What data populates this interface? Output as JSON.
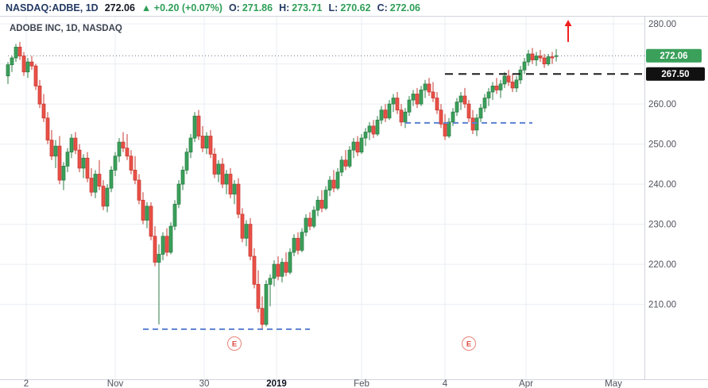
{
  "header": {
    "symbol": "NASDAQ:ADBE, 1D",
    "price": "272.06",
    "direction": "▲",
    "change": "+0.20 (+0.07%)",
    "ohlc": [
      {
        "label": "O:",
        "value": "271.86"
      },
      {
        "label": "H:",
        "value": "273.71"
      },
      {
        "label": "L:",
        "value": "270.62"
      },
      {
        "label": "C:",
        "value": "272.06"
      }
    ]
  },
  "legend": "ADOBE INC, 1D, NASDAQ",
  "colors": {
    "up": "#3aa05a",
    "up_border": "#2d7d46",
    "down": "#ea5047",
    "down_border": "#c63a32",
    "grid": "#eaedf3",
    "axis_border": "#d1d4dc",
    "axis_text": "#50535e",
    "support": "#5b80d0",
    "resistance": "#1d1d1d",
    "arrow": "#f01f1f",
    "earnings": "#e0483e",
    "last_price_badge_bg": "#3aa05a",
    "level_badge_bg": "#111111",
    "dotted_price_line": "#6b7280",
    "year_label": "#131722"
  },
  "price_axis": {
    "ticks": [
      280,
      260,
      250,
      240,
      230,
      220,
      210
    ],
    "last_price_label": "272.06",
    "level_label": "267.50"
  },
  "time_axis": {
    "ticks": [
      {
        "label": "2",
        "i": 4.6
      },
      {
        "label": "Nov",
        "i": 27
      },
      {
        "label": "30",
        "i": 49.4
      },
      {
        "label": "2019",
        "i": 67.6,
        "bold": true
      },
      {
        "label": "Feb",
        "i": 89
      },
      {
        "label": "4",
        "i": 110
      },
      {
        "label": "Apr",
        "i": 130.4
      },
      {
        "label": "May",
        "i": 152.4
      }
    ]
  },
  "chart_data": {
    "type": "candlestick",
    "title": "ADOBE INC, 1D, NASDAQ",
    "ohlc_format": "[open, high, low, close]",
    "price_range_visible": [
      191.5,
      282
    ],
    "gridline_prices": [
      210,
      220,
      230,
      240,
      250,
      260,
      270,
      280
    ],
    "last_close": 272.06,
    "candles": [
      [
        267.0,
        270.5,
        265.0,
        269.8
      ],
      [
        269.8,
        272.0,
        268.0,
        271.5
      ],
      [
        271.5,
        275.0,
        270.5,
        274.2
      ],
      [
        274.2,
        275.5,
        271.0,
        272.0
      ],
      [
        272.0,
        273.0,
        267.0,
        268.0
      ],
      [
        268.0,
        271.5,
        266.5,
        270.5
      ],
      [
        270.5,
        272.0,
        268.5,
        269.5
      ],
      [
        269.5,
        270.0,
        263.5,
        264.5
      ],
      [
        264.5,
        266.0,
        259.0,
        260.0
      ],
      [
        260.0,
        262.5,
        255.5,
        256.5
      ],
      [
        256.5,
        258.0,
        250.0,
        251.0
      ],
      [
        251.0,
        253.5,
        246.0,
        247.0
      ],
      [
        247.0,
        251.0,
        244.0,
        249.5
      ],
      [
        249.5,
        252.0,
        240.0,
        241.0
      ],
      [
        241.0,
        245.5,
        238.5,
        244.5
      ],
      [
        244.5,
        249.0,
        243.0,
        248.0
      ],
      [
        248.0,
        252.5,
        246.5,
        251.5
      ],
      [
        251.5,
        253.0,
        247.5,
        248.5
      ],
      [
        248.5,
        250.0,
        243.0,
        244.0
      ],
      [
        244.0,
        247.5,
        241.5,
        246.5
      ],
      [
        246.5,
        248.0,
        240.5,
        241.5
      ],
      [
        241.5,
        244.0,
        237.0,
        238.0
      ],
      [
        238.0,
        243.5,
        236.5,
        242.5
      ],
      [
        242.5,
        246.0,
        238.5,
        239.5
      ],
      [
        239.5,
        241.0,
        233.5,
        234.5
      ],
      [
        234.5,
        240.0,
        233.0,
        239.0
      ],
      [
        239.0,
        244.5,
        238.0,
        243.5
      ],
      [
        243.5,
        248.0,
        242.0,
        247.0
      ],
      [
        247.0,
        251.5,
        245.5,
        250.5
      ],
      [
        250.5,
        253.0,
        248.0,
        249.0
      ],
      [
        249.0,
        252.5,
        246.0,
        247.0
      ],
      [
        247.0,
        248.5,
        242.5,
        243.5
      ],
      [
        243.5,
        247.0,
        240.0,
        241.0
      ],
      [
        241.0,
        242.5,
        235.0,
        236.0
      ],
      [
        236.0,
        238.0,
        230.0,
        231.0
      ],
      [
        231.0,
        235.5,
        229.0,
        234.5
      ],
      [
        234.5,
        235.5,
        226.0,
        227.0
      ],
      [
        227.0,
        229.5,
        219.5,
        220.5
      ],
      [
        220.5,
        225.0,
        205.0,
        222.5
      ],
      [
        222.5,
        228.0,
        221.0,
        227.0
      ],
      [
        227.0,
        229.0,
        222.0,
        223.0
      ],
      [
        223.0,
        230.5,
        222.5,
        229.5
      ],
      [
        229.5,
        236.0,
        228.5,
        235.0
      ],
      [
        235.0,
        241.0,
        234.0,
        240.0
      ],
      [
        240.0,
        244.5,
        238.5,
        243.5
      ],
      [
        243.5,
        249.0,
        242.5,
        248.0
      ],
      [
        248.0,
        252.5,
        246.5,
        251.5
      ],
      [
        251.5,
        258.0,
        250.5,
        257.0
      ],
      [
        257.0,
        258.5,
        251.0,
        252.0
      ],
      [
        252.0,
        254.5,
        248.0,
        249.0
      ],
      [
        249.0,
        253.0,
        247.5,
        252.0
      ],
      [
        252.0,
        253.5,
        246.5,
        247.5
      ],
      [
        247.5,
        249.0,
        241.5,
        242.5
      ],
      [
        242.5,
        246.0,
        240.5,
        245.0
      ],
      [
        245.0,
        246.5,
        239.0,
        240.0
      ],
      [
        240.0,
        243.5,
        237.5,
        242.5
      ],
      [
        242.5,
        244.0,
        236.5,
        237.5
      ],
      [
        237.5,
        241.0,
        235.0,
        240.0
      ],
      [
        240.0,
        241.5,
        231.5,
        232.5
      ],
      [
        232.5,
        234.0,
        225.5,
        226.5
      ],
      [
        226.5,
        231.0,
        224.5,
        230.0
      ],
      [
        230.0,
        231.5,
        221.0,
        222.0
      ],
      [
        222.0,
        224.0,
        214.0,
        215.0
      ],
      [
        215.0,
        218.5,
        208.0,
        209.0
      ],
      [
        209.0,
        212.0,
        203.9,
        205.0
      ],
      [
        205.0,
        216.0,
        204.5,
        215.0
      ],
      [
        215.0,
        217.5,
        209.5,
        216.5
      ],
      [
        216.5,
        221.0,
        214.5,
        220.0
      ],
      [
        220.0,
        222.0,
        216.0,
        217.0
      ],
      [
        217.0,
        221.5,
        215.5,
        220.5
      ],
      [
        220.5,
        223.0,
        217.0,
        218.0
      ],
      [
        218.0,
        224.0,
        217.5,
        223.0
      ],
      [
        223.0,
        227.5,
        222.0,
        226.5
      ],
      [
        226.5,
        228.0,
        222.5,
        223.5
      ],
      [
        223.5,
        229.0,
        223.0,
        228.0
      ],
      [
        228.0,
        232.5,
        227.0,
        231.5
      ],
      [
        231.5,
        233.0,
        228.5,
        229.5
      ],
      [
        229.5,
        234.5,
        229.0,
        233.5
      ],
      [
        233.5,
        237.0,
        232.0,
        236.0
      ],
      [
        236.0,
        238.5,
        233.0,
        234.0
      ],
      [
        234.0,
        239.5,
        233.5,
        238.5
      ],
      [
        238.5,
        242.0,
        237.0,
        241.0
      ],
      [
        241.0,
        243.5,
        238.0,
        239.0
      ],
      [
        239.0,
        244.0,
        238.5,
        243.0
      ],
      [
        243.0,
        247.0,
        242.0,
        246.0
      ],
      [
        246.0,
        248.5,
        243.5,
        244.5
      ],
      [
        244.5,
        249.5,
        244.0,
        248.5
      ],
      [
        248.5,
        251.5,
        246.5,
        250.5
      ],
      [
        250.5,
        252.0,
        247.0,
        248.0
      ],
      [
        248.0,
        252.5,
        247.5,
        251.5
      ],
      [
        251.5,
        254.0,
        249.5,
        253.0
      ],
      [
        253.0,
        255.5,
        251.0,
        254.5
      ],
      [
        254.5,
        256.0,
        251.5,
        252.5
      ],
      [
        252.5,
        257.0,
        252.0,
        256.0
      ],
      [
        256.0,
        259.5,
        255.0,
        258.5
      ],
      [
        258.5,
        260.0,
        255.5,
        256.5
      ],
      [
        256.5,
        261.0,
        256.0,
        260.0
      ],
      [
        260.0,
        262.5,
        258.0,
        261.5
      ],
      [
        261.5,
        263.0,
        257.5,
        258.5
      ],
      [
        258.5,
        260.0,
        254.5,
        255.5
      ],
      [
        255.5,
        259.0,
        254.0,
        258.0
      ],
      [
        258.0,
        262.0,
        257.0,
        261.0
      ],
      [
        261.0,
        263.5,
        259.5,
        262.5
      ],
      [
        262.5,
        264.0,
        259.0,
        260.0
      ],
      [
        260.0,
        264.5,
        259.5,
        263.5
      ],
      [
        263.5,
        266.0,
        261.5,
        265.0
      ],
      [
        265.0,
        266.5,
        262.0,
        263.0
      ],
      [
        263.0,
        265.5,
        260.5,
        261.5
      ],
      [
        261.5,
        263.0,
        257.5,
        258.5
      ],
      [
        258.5,
        260.0,
        254.0,
        255.0
      ],
      [
        255.0,
        257.5,
        251.0,
        252.0
      ],
      [
        252.0,
        256.5,
        251.5,
        255.5
      ],
      [
        255.5,
        259.0,
        254.5,
        258.0
      ],
      [
        258.0,
        261.5,
        257.0,
        260.5
      ],
      [
        260.5,
        263.0,
        258.5,
        262.0
      ],
      [
        262.0,
        264.0,
        259.0,
        260.0
      ],
      [
        260.0,
        261.0,
        255.5,
        256.5
      ],
      [
        256.5,
        258.5,
        252.5,
        253.5
      ],
      [
        253.5,
        257.5,
        252.0,
        256.5
      ],
      [
        256.5,
        260.0,
        255.5,
        259.0
      ],
      [
        259.0,
        262.5,
        258.0,
        261.5
      ],
      [
        261.5,
        264.0,
        259.5,
        263.0
      ],
      [
        263.0,
        265.5,
        261.0,
        264.5
      ],
      [
        264.5,
        266.5,
        262.5,
        263.5
      ],
      [
        263.5,
        266.0,
        261.5,
        265.0
      ],
      [
        265.0,
        268.0,
        264.0,
        267.0
      ],
      [
        267.0,
        268.5,
        264.5,
        265.5
      ],
      [
        265.5,
        267.5,
        263.0,
        264.0
      ],
      [
        264.0,
        267.0,
        263.0,
        266.0
      ],
      [
        266.0,
        269.5,
        265.0,
        268.5
      ],
      [
        268.5,
        271.5,
        267.5,
        270.5
      ],
      [
        270.5,
        273.5,
        269.5,
        272.5
      ],
      [
        272.5,
        274.0,
        270.0,
        271.0
      ],
      [
        271.0,
        273.0,
        269.5,
        272.0
      ],
      [
        272.0,
        273.5,
        270.5,
        271.5
      ],
      [
        271.5,
        272.5,
        269.0,
        270.0
      ],
      [
        270.0,
        272.5,
        269.5,
        271.8
      ],
      [
        271.8,
        273.0,
        270.0,
        271.5
      ],
      [
        271.86,
        273.71,
        270.62,
        272.06
      ]
    ],
    "annotations": {
      "support_lines": [
        {
          "price": 203.8,
          "from_index": 34,
          "to_index": 76,
          "style": "dashed",
          "color": "#5b80d0"
        },
        {
          "price": 255.3,
          "from_index": 100,
          "to_index": 132,
          "style": "dashed",
          "color": "#5b80d0"
        }
      ],
      "resistance_line": {
        "price": 267.5,
        "from_index": 110,
        "to_plot_right": true,
        "style": "dashed",
        "color": "#1d1d1d",
        "label": "267.50"
      },
      "earnings_markers": [
        {
          "label": "E",
          "index": 57
        },
        {
          "label": "E",
          "index": 116
        }
      ],
      "breakout_arrow": {
        "direction": "up",
        "index": 141,
        "price_top": 281,
        "price_bottom": 275.5,
        "color": "#f01f1f"
      }
    }
  }
}
